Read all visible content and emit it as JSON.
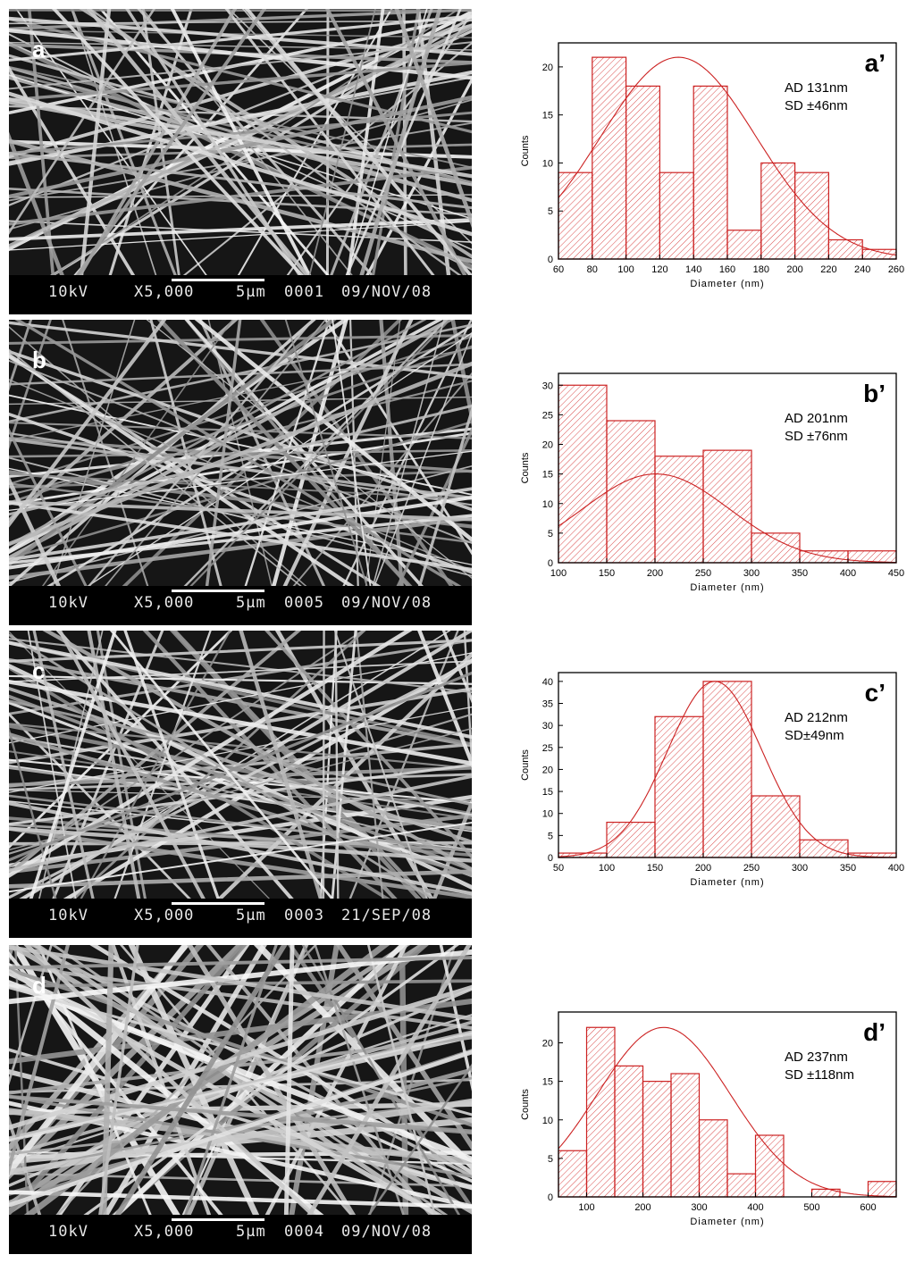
{
  "sem_panels": [
    {
      "label": "a",
      "info": {
        "voltage": "10kV",
        "mag": "X5,000",
        "scale": "5µm",
        "num": "0001",
        "date": "09/NOV/08"
      }
    },
    {
      "label": "b",
      "info": {
        "voltage": "10kV",
        "mag": "X5,000",
        "scale": "5µm",
        "num": "0005",
        "date": "09/NOV/08"
      }
    },
    {
      "label": "c",
      "info": {
        "voltage": "10kV",
        "mag": "X5,000",
        "scale": "5µm",
        "num": "0003",
        "date": "21/SEP/08"
      }
    },
    {
      "label": "d",
      "info": {
        "voltage": "10kV",
        "mag": "X5,000",
        "scale": "5µm",
        "num": "0004",
        "date": "09/NOV/08"
      }
    }
  ],
  "colors": {
    "bar": "#cc2222",
    "hatch": "#d94a4a",
    "fit": "#cc2222",
    "axis": "#000000",
    "sem_bg": "#1a1a1a"
  },
  "chart_data": [
    {
      "type": "bar",
      "panel": "a’",
      "annotation": [
        "AD 131nm",
        "SD ±46nm"
      ],
      "xlabel": "Diameter (nm)",
      "ylabel": "Counts",
      "xlim": [
        60,
        260
      ],
      "ylim": [
        0,
        22.5
      ],
      "xticks": [
        60,
        80,
        100,
        120,
        140,
        160,
        180,
        200,
        220,
        240,
        260
      ],
      "yticks": [
        0,
        5,
        10,
        15,
        20
      ],
      "bins": [
        [
          60,
          80
        ],
        [
          80,
          100
        ],
        [
          100,
          120
        ],
        [
          120,
          140
        ],
        [
          140,
          160
        ],
        [
          160,
          180
        ],
        [
          180,
          200
        ],
        [
          200,
          220
        ],
        [
          220,
          240
        ],
        [
          240,
          260
        ]
      ],
      "values": [
        9,
        21,
        18,
        9,
        18,
        3,
        10,
        9,
        2,
        1
      ],
      "fit": {
        "type": "gaussian",
        "mean": 131,
        "sd": 46,
        "peak": 21
      }
    },
    {
      "type": "bar",
      "panel": "b’",
      "annotation": [
        "AD 201nm",
        "SD ±76nm"
      ],
      "xlabel": "Diameter (nm)",
      "ylabel": "Counts",
      "xlim": [
        100,
        450
      ],
      "ylim": [
        0,
        32
      ],
      "xticks": [
        100,
        150,
        200,
        250,
        300,
        350,
        400,
        450
      ],
      "yticks": [
        0,
        5,
        10,
        15,
        20,
        25,
        30
      ],
      "bins": [
        [
          100,
          150
        ],
        [
          150,
          200
        ],
        [
          200,
          250
        ],
        [
          250,
          300
        ],
        [
          300,
          350
        ],
        [
          350,
          400
        ],
        [
          400,
          450
        ]
      ],
      "values": [
        30,
        24,
        18,
        19,
        5,
        2,
        2
      ],
      "fit": {
        "type": "gaussian",
        "mean": 201,
        "sd": 76,
        "peak": 15
      }
    },
    {
      "type": "bar",
      "panel": "c’",
      "annotation": [
        "AD 212nm",
        "SD±49nm"
      ],
      "xlabel": "Diameter (nm)",
      "ylabel": "Counts",
      "xlim": [
        50,
        400
      ],
      "ylim": [
        0,
        42
      ],
      "xticks": [
        50,
        100,
        150,
        200,
        250,
        300,
        350,
        400
      ],
      "yticks": [
        0,
        5,
        10,
        15,
        20,
        25,
        30,
        35,
        40
      ],
      "bins": [
        [
          50,
          100
        ],
        [
          100,
          150
        ],
        [
          150,
          200
        ],
        [
          200,
          250
        ],
        [
          250,
          300
        ],
        [
          300,
          350
        ],
        [
          350,
          400
        ]
      ],
      "values": [
        1,
        8,
        32,
        40,
        14,
        4,
        1
      ],
      "fit": {
        "type": "gaussian",
        "mean": 212,
        "sd": 49,
        "peak": 40
      }
    },
    {
      "type": "bar",
      "panel": "d’",
      "annotation": [
        "AD 237nm",
        "SD ±118nm"
      ],
      "xlabel": "Diameter (nm)",
      "ylabel": "Counts",
      "xlim": [
        50,
        650
      ],
      "ylim": [
        0,
        24
      ],
      "xticks": [
        100,
        200,
        300,
        400,
        500,
        600
      ],
      "yticks": [
        0,
        5,
        10,
        15,
        20
      ],
      "bins": [
        [
          50,
          100
        ],
        [
          100,
          150
        ],
        [
          150,
          200
        ],
        [
          200,
          250
        ],
        [
          250,
          300
        ],
        [
          300,
          350
        ],
        [
          350,
          400
        ],
        [
          400,
          450
        ],
        [
          450,
          500
        ],
        [
          500,
          550
        ],
        [
          550,
          600
        ],
        [
          600,
          650
        ]
      ],
      "values": [
        6,
        22,
        17,
        15,
        16,
        10,
        3,
        8,
        0,
        1,
        0,
        2
      ],
      "fit": {
        "type": "gaussian",
        "mean": 237,
        "sd": 118,
        "peak": 22
      }
    }
  ]
}
